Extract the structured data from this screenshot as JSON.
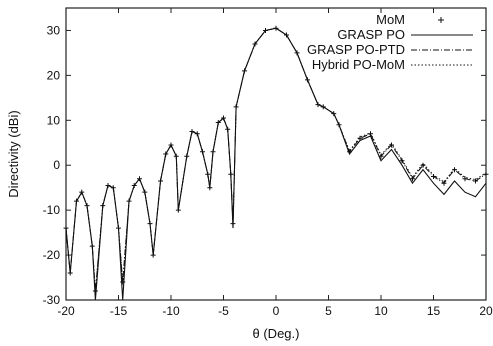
{
  "chart_data": {
    "type": "line",
    "xlabel": "θ (Deg.)",
    "ylabel": "Directivity (dBi)",
    "xlim": [
      -20,
      20
    ],
    "ylim": [
      -30,
      35
    ],
    "x_ticks": [
      -20,
      -15,
      -10,
      -5,
      0,
      5,
      10,
      15,
      20
    ],
    "y_ticks": [
      -30,
      -20,
      -10,
      0,
      10,
      20,
      30
    ],
    "x_tick_labels": [
      "-20",
      "-15",
      "-10",
      "-5",
      "0",
      "5",
      "10",
      "15",
      "20"
    ],
    "y_tick_labels": [
      "-30",
      "-20",
      "-10",
      "0",
      "10",
      "20",
      "30"
    ],
    "grid": false,
    "legend_position": "top-right",
    "series": [
      {
        "name": "MoM",
        "style": "plus-markers",
        "x": [
          -20,
          -19.6,
          -19,
          -18.5,
          -18,
          -17.5,
          -17.2,
          -16.5,
          -16,
          -15.5,
          -15,
          -14.6,
          -14,
          -13.5,
          -13,
          -12.5,
          -12,
          -11.7,
          -11,
          -10.5,
          -10,
          -9.5,
          -9.3,
          -8.5,
          -8,
          -7.5,
          -7,
          -6.5,
          -6.3,
          -6,
          -5.5,
          -5,
          -4.6,
          -4.3,
          -4.1,
          -3.8,
          -3,
          -2,
          -1,
          0,
          1,
          2,
          3,
          4,
          4.5,
          5.5,
          6,
          7,
          8,
          9,
          10,
          11,
          12,
          13,
          14,
          15,
          16,
          17,
          18,
          19,
          20
        ],
        "y": [
          -14,
          -24,
          -8,
          -6,
          -9,
          -18,
          -28,
          -9,
          -4.5,
          -5,
          -14,
          -26,
          -8,
          -4.5,
          -3,
          -6,
          -13,
          -20,
          -3.5,
          2.5,
          4.5,
          2,
          -10,
          2,
          7.5,
          7,
          3,
          -2,
          -5,
          3,
          9.5,
          10.5,
          8,
          -2,
          -13,
          13,
          21,
          27,
          30,
          30.5,
          29,
          25,
          19,
          13.5,
          13,
          11.5,
          9,
          3,
          6,
          7,
          2,
          4.5,
          1,
          -3,
          0,
          -2.5,
          -4,
          -1,
          -3,
          -3.5,
          -2
        ]
      },
      {
        "name": "GRASP PO",
        "style": "solid",
        "x": [
          -20,
          -19.6,
          -19,
          -18.5,
          -18,
          -17.5,
          -17.2,
          -16.5,
          -16,
          -15.5,
          -15,
          -14.6,
          -14,
          -13.5,
          -13,
          -12.5,
          -12,
          -11.7,
          -11,
          -10.5,
          -10,
          -9.5,
          -9.3,
          -8.5,
          -8,
          -7.5,
          -7,
          -6.5,
          -6.3,
          -6,
          -5.5,
          -5,
          -4.6,
          -4.3,
          -4.1,
          -3.8,
          -3,
          -2,
          -1,
          0,
          1,
          2,
          3,
          4,
          4.5,
          5.5,
          6,
          7,
          8,
          9,
          10,
          11,
          12,
          13,
          14,
          15,
          16,
          17,
          18,
          19,
          20
        ],
        "y": [
          -14,
          -24,
          -8,
          -6,
          -9,
          -18,
          -30,
          -9,
          -4.5,
          -5,
          -14,
          -30,
          -8,
          -4.5,
          -3,
          -6,
          -13,
          -20,
          -3.5,
          2.5,
          4.5,
          2,
          -10,
          2,
          7.5,
          7,
          3,
          -2,
          -5,
          3,
          9.5,
          10.5,
          8,
          -2,
          -14,
          13,
          21,
          27,
          30,
          30.5,
          29,
          25,
          19,
          13.5,
          13,
          11.5,
          9,
          2.5,
          5.5,
          6.5,
          1,
          3.5,
          0,
          -4,
          -1,
          -4,
          -6.5,
          -3.5,
          -6,
          -7,
          -4
        ]
      },
      {
        "name": "GRASP PO-PTD",
        "style": "dash-dot",
        "x": [
          -20,
          -19.6,
          -19,
          -18.5,
          -18,
          -17.5,
          -17.2,
          -16.5,
          -16,
          -15.5,
          -15,
          -14.6,
          -14,
          -13.5,
          -13,
          -12.5,
          -12,
          -11.7,
          -11,
          -10.5,
          -10,
          -9.5,
          -9.3,
          -8.5,
          -8,
          -7.5,
          -7,
          -6.5,
          -6.3,
          -6,
          -5.5,
          -5,
          -4.6,
          -4.3,
          -4.1,
          -3.8,
          -3,
          -2,
          -1,
          0,
          1,
          2,
          3,
          4,
          4.5,
          5.5,
          6,
          7,
          8,
          9,
          10,
          11,
          12,
          13,
          14,
          15,
          16,
          17,
          18,
          19,
          20
        ],
        "y": [
          -14,
          -24,
          -8,
          -6,
          -9,
          -18,
          -28,
          -9,
          -4.5,
          -5,
          -14,
          -26,
          -8,
          -4.5,
          -3,
          -6,
          -13,
          -20,
          -3.5,
          2.5,
          4.5,
          2,
          -10,
          2,
          7.5,
          7,
          3,
          -2,
          -5,
          3,
          9.5,
          10.5,
          8,
          -2,
          -13,
          13,
          21,
          27,
          30,
          30.5,
          29,
          25,
          19,
          13.5,
          13,
          11.5,
          9,
          3,
          6,
          7,
          2,
          4.5,
          1,
          -3,
          0,
          -2.5,
          -4,
          -1,
          -3,
          -3.5,
          -2
        ]
      },
      {
        "name": "Hybrid PO-MoM",
        "style": "dotted",
        "x": [
          -20,
          -19.6,
          -19,
          -18.5,
          -18,
          -17.5,
          -17.2,
          -16.5,
          -16,
          -15.5,
          -15,
          -14.6,
          -14,
          -13.5,
          -13,
          -12.5,
          -12,
          -11.7,
          -11,
          -10.5,
          -10,
          -9.5,
          -9.3,
          -8.5,
          -8,
          -7.5,
          -7,
          -6.5,
          -6.3,
          -6,
          -5.5,
          -5,
          -4.6,
          -4.3,
          -4.1,
          -3.8,
          -3,
          -2,
          -1,
          0,
          1,
          2,
          3,
          4,
          4.5,
          5.5,
          6,
          7,
          8,
          9,
          10,
          11,
          12,
          13,
          14,
          15,
          16,
          17,
          18,
          19,
          20
        ],
        "y": [
          -14,
          -24,
          -8,
          -6,
          -9,
          -18,
          -28,
          -9,
          -4.5,
          -5,
          -14,
          -26,
          -8,
          -4.5,
          -3,
          -6,
          -13,
          -20,
          -3.5,
          2.5,
          4.5,
          2,
          -10,
          2,
          7.5,
          7,
          3,
          -2,
          -5,
          3,
          9.5,
          10.5,
          8,
          -2,
          -13,
          13,
          21,
          27,
          30,
          30.5,
          29,
          25,
          19,
          13.5,
          13,
          11.5,
          9,
          3.2,
          6.3,
          7.2,
          2.3,
          4.8,
          1.3,
          -2.7,
          0.4,
          -2.2,
          -3.7,
          -0.7,
          -2.7,
          -3.2,
          -1.7
        ]
      }
    ]
  }
}
